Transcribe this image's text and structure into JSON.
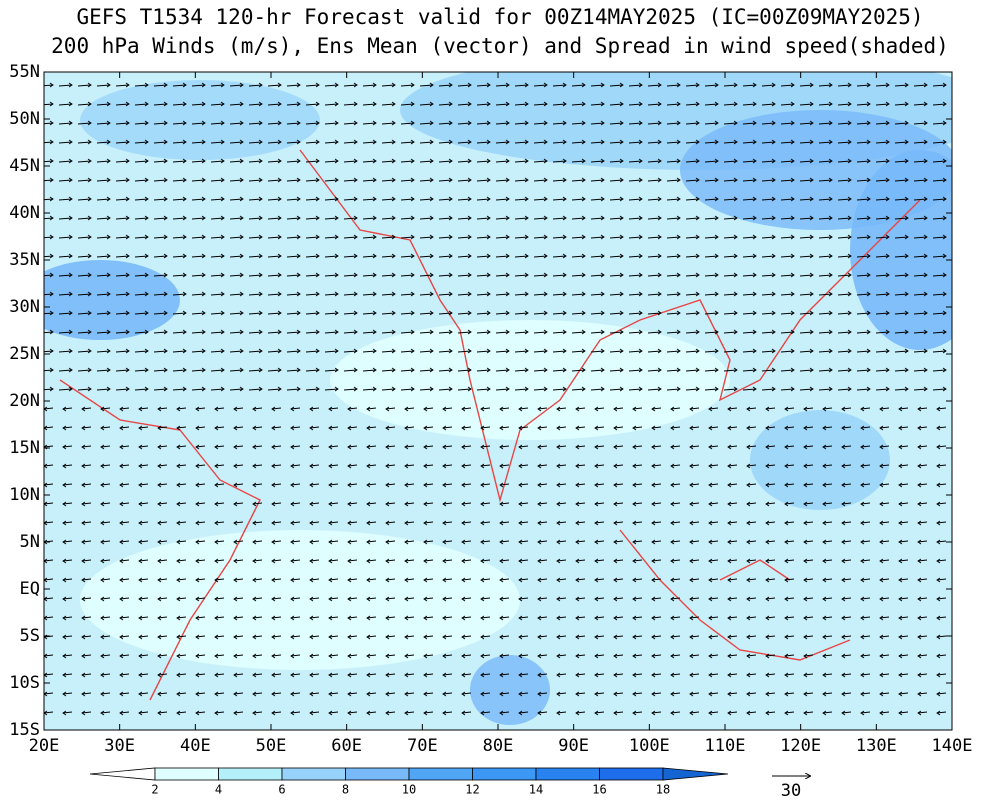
{
  "header": {
    "title": "GEFS T1534 120-hr Forecast valid for 00Z14MAY2025 (IC=00Z09MAY2025)",
    "subtitle": "200 hPa Winds (m/s), Ens Mean (vector) and Spread in wind speed(shaded)"
  },
  "axes": {
    "lon_labels": [
      "20E",
      "30E",
      "40E",
      "50E",
      "60E",
      "70E",
      "80E",
      "90E",
      "100E",
      "110E",
      "120E",
      "130E",
      "140E"
    ],
    "lat_labels": [
      "55N",
      "50N",
      "45N",
      "40N",
      "35N",
      "30N",
      "25N",
      "20N",
      "15N",
      "10N",
      "5N",
      "EQ",
      "5S",
      "10S",
      "15S"
    ]
  },
  "colorbar": {
    "levels": [
      2,
      4,
      6,
      8,
      10,
      12,
      14,
      16,
      18
    ],
    "colors": [
      "#ffffff",
      "#e0ffff",
      "#b4f0fa",
      "#96d2fa",
      "#78b9fa",
      "#50a5f5",
      "#3c97f5",
      "#2882f0",
      "#1e6eeb",
      "#1464d2"
    ]
  },
  "reference_vector": {
    "label": "30"
  }
}
